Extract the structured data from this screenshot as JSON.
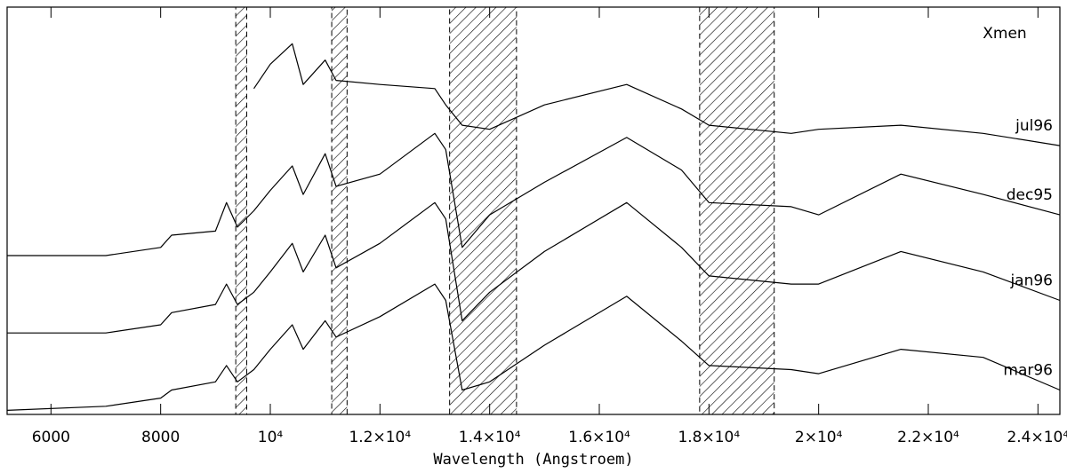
{
  "chart_data": {
    "type": "line",
    "title": "Xmen",
    "x_label": "Wavelength (Angstroem)",
    "xlim": [
      5200,
      24400
    ],
    "ylim": [
      0,
      100
    ],
    "xticks": [
      6000,
      8000,
      {
        "value": 10000,
        "label": "10⁴"
      },
      {
        "value": 12000,
        "label": "1.2×10⁴"
      },
      {
        "value": 14000,
        "label": "1.4×10⁴"
      },
      {
        "value": 16000,
        "label": "1.6×10⁴"
      },
      {
        "value": 18000,
        "label": "1.8×10⁴"
      },
      {
        "value": 20000,
        "label": "2×10⁴"
      },
      {
        "value": 22000,
        "label": "2.2×10⁴"
      },
      {
        "value": 24000,
        "label": "2.4×10⁴"
      }
    ],
    "shaded_regions": [
      [
        9370,
        9570
      ],
      [
        11120,
        11400
      ],
      [
        13270,
        14490
      ],
      [
        17830,
        19190
      ]
    ],
    "x": [
      5200,
      7000,
      8000,
      8200,
      9000,
      9200,
      9400,
      9700,
      10000,
      10400,
      10600,
      11000,
      11200,
      12000,
      13000,
      13200,
      13500,
      14000,
      15000,
      16500,
      17500,
      18000,
      19500,
      20000,
      21500,
      23000,
      24400
    ],
    "series": [
      {
        "name": "jul96",
        "color": "#000000",
        "values": [
          null,
          null,
          null,
          null,
          null,
          null,
          null,
          80,
          86,
          91,
          81,
          87,
          82,
          81,
          80,
          76,
          71,
          70,
          76,
          81,
          75,
          71,
          69,
          70,
          71,
          69,
          66
        ]
      },
      {
        "name": "dec95",
        "color": "#000000",
        "values": [
          39,
          39,
          41,
          44,
          45,
          52,
          46,
          50,
          55,
          61,
          54,
          64,
          56,
          59,
          69,
          65,
          41,
          49,
          57,
          68,
          60,
          52,
          51,
          49,
          59,
          54,
          49
        ]
      },
      {
        "name": "jan96",
        "color": "#000000",
        "values": [
          20,
          20,
          22,
          25,
          27,
          32,
          27,
          30,
          35,
          42,
          35,
          44,
          36,
          42,
          52,
          48,
          23,
          30,
          40,
          52,
          41,
          34,
          32,
          32,
          40,
          35,
          28
        ]
      },
      {
        "name": "mar96",
        "color": "#000000",
        "values": [
          1,
          2,
          4,
          6,
          8,
          12,
          8,
          11,
          16,
          22,
          16,
          23,
          19,
          24,
          32,
          28,
          6,
          8,
          17,
          29,
          18,
          12,
          11,
          10,
          16,
          14,
          6
        ]
      }
    ]
  }
}
